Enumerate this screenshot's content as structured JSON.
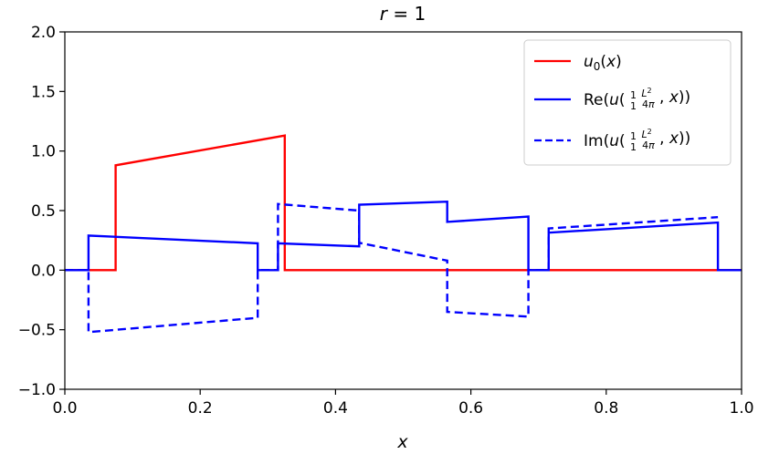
{
  "chart_data": {
    "type": "line",
    "title": "r = 1",
    "xlabel": "x",
    "ylabel": "",
    "xlim": [
      0.0,
      1.0
    ],
    "ylim": [
      -1.0,
      2.0
    ],
    "x_ticks": [
      "0.0",
      "0.2",
      "0.4",
      "0.6",
      "0.8",
      "1.0"
    ],
    "y_ticks": [
      "−1.0",
      "−0.5",
      "0.0",
      "0.5",
      "1.0",
      "1.5",
      "2.0"
    ],
    "legend_position": "top-right",
    "grid": false,
    "series": [
      {
        "name": "u0(x)",
        "color": "#ff0000",
        "style": "solid",
        "points": [
          [
            0.0,
            0.0
          ],
          [
            0.075,
            0.0
          ],
          [
            0.075,
            0.88
          ],
          [
            0.325,
            1.13
          ],
          [
            0.325,
            0.0
          ],
          [
            1.0,
            0.0
          ]
        ]
      },
      {
        "name": "Re(u(1/1 L²/4π, x))",
        "color": "#0000ff",
        "style": "solid",
        "points": [
          [
            0.0,
            0.0
          ],
          [
            0.035,
            0.0
          ],
          [
            0.035,
            0.29
          ],
          [
            0.285,
            0.225
          ],
          [
            0.285,
            0.0
          ],
          [
            0.315,
            0.0
          ],
          [
            0.315,
            0.225
          ],
          [
            0.435,
            0.2
          ],
          [
            0.435,
            0.55
          ],
          [
            0.565,
            0.575
          ],
          [
            0.565,
            0.405
          ],
          [
            0.685,
            0.45
          ],
          [
            0.685,
            0.0
          ],
          [
            0.715,
            0.0
          ],
          [
            0.715,
            0.315
          ],
          [
            0.965,
            0.4
          ],
          [
            0.965,
            0.0
          ],
          [
            1.0,
            0.0
          ]
        ]
      },
      {
        "name": "Im(u(1/1 L²/4π, x))",
        "color": "#0000ff",
        "style": "dashed",
        "points": [
          [
            0.0,
            0.0
          ],
          [
            0.035,
            0.0
          ],
          [
            0.035,
            -0.52
          ],
          [
            0.285,
            -0.4
          ],
          [
            0.285,
            0.0
          ],
          [
            0.315,
            0.0
          ],
          [
            0.315,
            0.555
          ],
          [
            0.435,
            0.5
          ],
          [
            0.435,
            0.23
          ],
          [
            0.565,
            0.08
          ],
          [
            0.565,
            -0.35
          ],
          [
            0.685,
            -0.39
          ],
          [
            0.685,
            0.0
          ],
          [
            0.715,
            0.0
          ],
          [
            0.715,
            0.35
          ],
          [
            0.965,
            0.445
          ]
        ]
      }
    ]
  }
}
